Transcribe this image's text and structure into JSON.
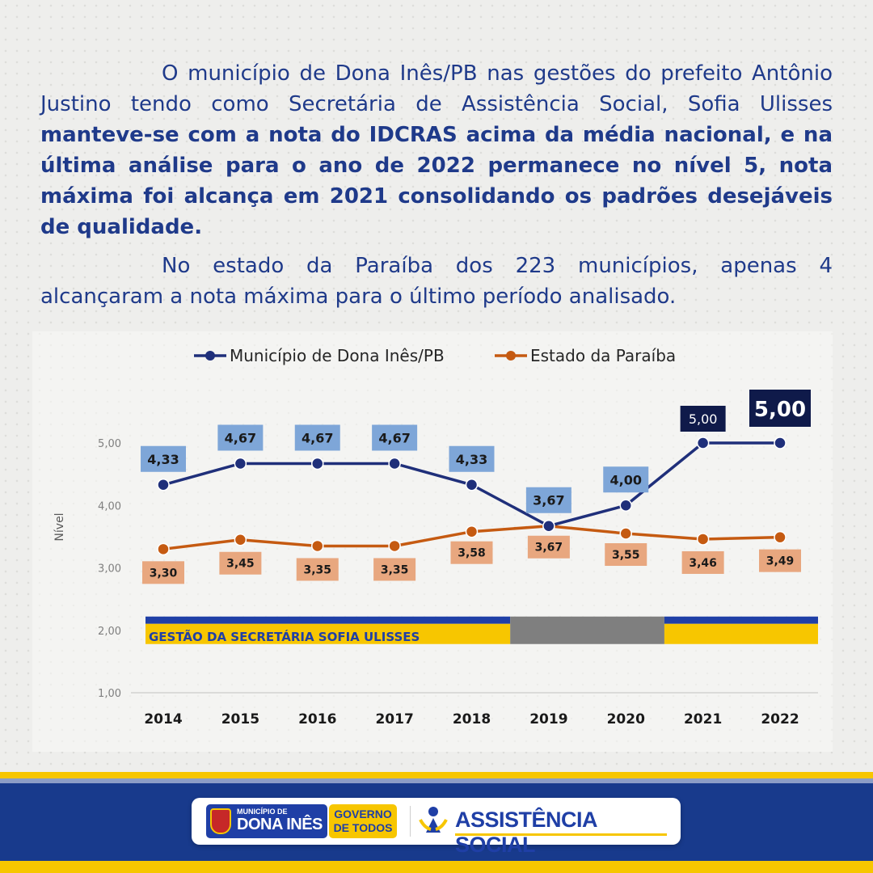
{
  "paragraph1": {
    "normal": "O município de Dona Inês/PB nas gestões do prefeito Antônio Justino tendo como Secretária de Assistência Social, Sofia Ulisses ",
    "bold": "manteve-se com a nota do IDCRAS acima da média nacional, e na última análise para o ano de 2022 permanece no nível 5, nota máxima foi alcança em 2021 consolidando os padrões desejáveis de qualidade."
  },
  "paragraph2": "No estado da Paraíba dos 223 municípios, apenas 4 alcançaram a nota máxima para o último período analisado.",
  "colors": {
    "text": "#1f3a8a",
    "series_municipio": "#1f2f7a",
    "series_estado": "#c55a11",
    "label_municipio_bg": "#7ea6d8",
    "label_estado_bg": "#e8a77f",
    "highlight_bg": "#0f1a4a",
    "gestao_blue": "#1f3fa6",
    "gestao_yellow": "#f7c600",
    "gestao_gray": "#7f7f7f"
  },
  "chart_data": {
    "type": "line",
    "categories": [
      "2014",
      "2015",
      "2016",
      "2017",
      "2018",
      "2019",
      "2020",
      "2021",
      "2022"
    ],
    "series": [
      {
        "name": "Município de Dona Inês/PB",
        "values": [
          4.33,
          4.67,
          4.67,
          4.67,
          4.33,
          3.67,
          4.0,
          5.0,
          5.0
        ],
        "labels": [
          "4,33",
          "4,67",
          "4,67",
          "4,67",
          "4,33",
          "3,67",
          "4,00",
          "5,00",
          "5,00"
        ]
      },
      {
        "name": "Estado da Paraíba",
        "values": [
          3.3,
          3.45,
          3.35,
          3.35,
          3.58,
          3.67,
          3.55,
          3.46,
          3.49
        ],
        "labels": [
          "3,30",
          "3,45",
          "3,35",
          "3,35",
          "3,58",
          "3,67",
          "3,55",
          "3,46",
          "3,49"
        ]
      }
    ],
    "ylabel": "Nível",
    "ylim": [
      1,
      5
    ],
    "yticks": [
      1,
      2,
      3,
      4,
      5
    ],
    "ytick_labels": [
      "1,00",
      "2,00",
      "3,00",
      "4,00",
      "5,00"
    ],
    "legend_position": "top",
    "grid": false,
    "gestao_band": {
      "label": "GESTÃO DA SECRETÁRIA SOFIA ULISSES",
      "y_level": 2.0,
      "segments": [
        {
          "from": "2014",
          "to": "2018",
          "style": "gestao"
        },
        {
          "from": "2018",
          "to": "2020",
          "style": "gray"
        },
        {
          "from": "2020",
          "to": "2022",
          "style": "gestao"
        }
      ]
    }
  },
  "footer": {
    "muni_small": "MUNICÍPIO DE",
    "muni_big": "DONA INÊS",
    "gov_line1": "GOVERNO",
    "gov_line2": "DE TODOS",
    "assistencia": "ASSISTÊNCIA SOCIAL"
  }
}
